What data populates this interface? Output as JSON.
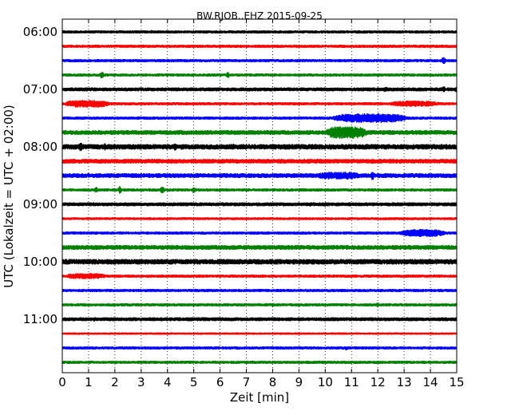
{
  "chart_data": {
    "type": "line",
    "title": "BW.RJOB..EHZ 2015-09-25",
    "xlabel": "Zeit  [min]",
    "ylabel": "UTC (Lokalzeit = UTC + 02:00)",
    "xlim": [
      0,
      15
    ],
    "x_ticks": [
      "0",
      "1",
      "2",
      "3",
      "4",
      "5",
      "6",
      "7",
      "8",
      "9",
      "10",
      "11",
      "12",
      "13",
      "14",
      "15"
    ],
    "y_tick_labels": [
      "06:00",
      "07:00",
      "08:00",
      "09:00",
      "10:00",
      "11:00"
    ],
    "grid": "vertical dotted",
    "series_colors": [
      "#000000",
      "#ff0000",
      "#0000ff",
      "#008000"
    ],
    "traces": [
      {
        "time": "06:00",
        "color": "#000000",
        "amp": 2.0,
        "events": [
          {
            "t": 3.4,
            "a": 2.5
          },
          {
            "t": 9.6,
            "a": 2
          }
        ]
      },
      {
        "time": "06:15",
        "color": "#ff0000",
        "amp": 2.0,
        "events": [
          {
            "t": 9.2,
            "a": 2
          }
        ]
      },
      {
        "time": "06:30",
        "color": "#0000ff",
        "amp": 2.0,
        "events": [
          {
            "t": 14.5,
            "a": 5
          }
        ]
      },
      {
        "time": "06:45",
        "color": "#008000",
        "amp": 2.0,
        "events": [
          {
            "t": 1.5,
            "a": 5
          },
          {
            "t": 6.3,
            "a": 4
          },
          {
            "t": 12,
            "a": 2
          }
        ]
      },
      {
        "time": "07:00",
        "color": "#000000",
        "amp": 2.5,
        "events": [
          {
            "t": 12.3,
            "a": 4
          },
          {
            "t": 14.5,
            "a": 4
          },
          {
            "t": 15,
            "a": 4
          }
        ]
      },
      {
        "time": "07:15",
        "color": "#ff0000",
        "amp": 2.0,
        "events": [
          {
            "t": 0.95,
            "a": 5,
            "w": 1.9
          },
          {
            "t": 13.4,
            "a": 4,
            "w": 2.2
          }
        ]
      },
      {
        "time": "07:30",
        "color": "#0000ff",
        "amp": 2.0,
        "events": [
          {
            "t": 11.7,
            "a": 6,
            "w": 3.2
          }
        ]
      },
      {
        "time": "07:45",
        "color": "#008000",
        "amp": 3.0,
        "events": [
          {
            "t": 10.8,
            "a": 8,
            "w": 1.8
          }
        ]
      },
      {
        "time": "08:00",
        "color": "#000000",
        "amp": 3.5,
        "events": [
          {
            "t": 0.7,
            "a": 6
          },
          {
            "t": 1.6,
            "a": 5
          },
          {
            "t": 4.3,
            "a": 5
          },
          {
            "t": 6.5,
            "a": 4
          }
        ]
      },
      {
        "time": "08:15",
        "color": "#ff0000",
        "amp": 3.0,
        "events": []
      },
      {
        "time": "08:30",
        "color": "#0000ff",
        "amp": 3.0,
        "events": [
          {
            "t": 10.5,
            "a": 5,
            "w": 2
          },
          {
            "t": 11.8,
            "a": 6
          }
        ]
      },
      {
        "time": "08:45",
        "color": "#008000",
        "amp": 2.0,
        "events": [
          {
            "t": 1.3,
            "a": 4
          },
          {
            "t": 2.2,
            "a": 5
          },
          {
            "t": 3.8,
            "a": 5
          },
          {
            "t": 5.0,
            "a": 4
          }
        ]
      },
      {
        "time": "09:00",
        "color": "#000000",
        "amp": 2.5,
        "events": [
          {
            "t": 1.2,
            "a": 3
          },
          {
            "t": 9.4,
            "a": 3
          },
          {
            "t": 10.0,
            "a": 3
          }
        ]
      },
      {
        "time": "09:15",
        "color": "#ff0000",
        "amp": 1.8,
        "events": []
      },
      {
        "time": "09:30",
        "color": "#0000ff",
        "amp": 2.0,
        "events": [
          {
            "t": 13.7,
            "a": 5,
            "w": 2
          }
        ]
      },
      {
        "time": "09:45",
        "color": "#008000",
        "amp": 3.0,
        "events": []
      },
      {
        "time": "10:00",
        "color": "#000000",
        "amp": 3.5,
        "events": []
      },
      {
        "time": "10:15",
        "color": "#ff0000",
        "amp": 2.0,
        "events": [
          {
            "t": 0.9,
            "a": 4,
            "w": 1.8
          }
        ]
      },
      {
        "time": "10:30",
        "color": "#0000ff",
        "amp": 2.0,
        "events": [
          {
            "t": 3.3,
            "a": 2
          },
          {
            "t": 11.8,
            "a": 2
          }
        ]
      },
      {
        "time": "10:45",
        "color": "#008000",
        "amp": 2.0,
        "events": [
          {
            "t": 12.0,
            "a": 3
          }
        ]
      },
      {
        "time": "11:00",
        "color": "#000000",
        "amp": 2.5,
        "events": [
          {
            "t": 1.2,
            "a": 3
          },
          {
            "t": 13.3,
            "a": 3
          },
          {
            "t": 14.3,
            "a": 3
          }
        ]
      },
      {
        "time": "11:15",
        "color": "#ff0000",
        "amp": 1.5,
        "events": []
      },
      {
        "time": "11:30",
        "color": "#0000ff",
        "amp": 2.0,
        "events": [
          {
            "t": 10.8,
            "a": 3
          }
        ]
      },
      {
        "time": "11:45",
        "color": "#008000",
        "amp": 2.0,
        "events": []
      }
    ]
  }
}
